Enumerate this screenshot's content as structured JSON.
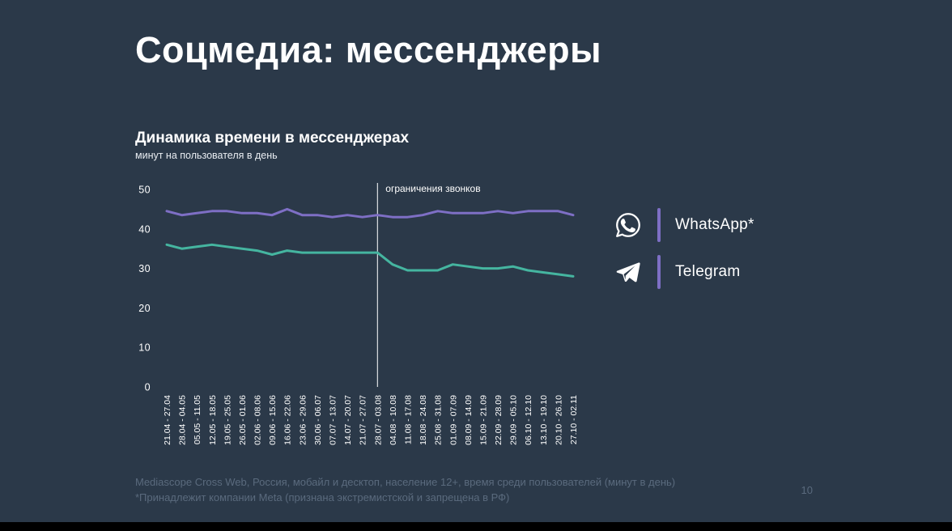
{
  "title": "Соцмедиа: мессенджеры",
  "chart_data": {
    "type": "line",
    "title": "Динамика времени в мессенджерах",
    "subtitle": "минут на пользователя в день",
    "xlabel": "",
    "ylabel": "",
    "ylim": [
      0,
      50
    ],
    "yticks": [
      0,
      10,
      20,
      30,
      40,
      50
    ],
    "grid": false,
    "legend_position": "right",
    "annotation": {
      "label": "ограничения звонков",
      "x_index": 14
    },
    "categories": [
      "21.04 - 27.04",
      "28.04 - 04.05",
      "05.05 - 11.05",
      "12.05 - 18.05",
      "19.05 - 25.05",
      "26.05 - 01.06",
      "02.06 - 08.06",
      "09.06 - 15.06",
      "16.06 - 22.06",
      "23.06 - 29.06",
      "30.06 - 06.07",
      "07.07 - 13.07",
      "14.07 - 20.07",
      "21.07 - 27.07",
      "28.07 - 03.08",
      "04.08 - 10.08",
      "11.08 - 17.08",
      "18.08 - 24.08",
      "25.08 - 31.08",
      "01.09 - 07.09",
      "08.09 - 14.09",
      "15.09 - 21.09",
      "22.09 - 28.09",
      "29.09 - 05.10",
      "06.10 - 12.10",
      "13.10 - 19.10",
      "20.10 - 26.10",
      "27.10 - 02.11"
    ],
    "series": [
      {
        "name": "WhatsApp*",
        "color": "#7e6fc5",
        "values": [
          44.5,
          43.5,
          44,
          44.5,
          44.5,
          44,
          44,
          43.5,
          45,
          43.5,
          43.5,
          43,
          43.5,
          43,
          43.5,
          43,
          43,
          43.5,
          44.5,
          44,
          44,
          44,
          44.5,
          44,
          44.5,
          44.5,
          44.5,
          43.5
        ]
      },
      {
        "name": "Telegram",
        "color": "#45b5a0",
        "values": [
          36,
          35,
          35.5,
          36,
          35.5,
          35,
          34.5,
          33.5,
          34.5,
          34,
          34,
          34,
          34,
          34,
          34,
          31,
          29.5,
          29.5,
          29.5,
          31,
          30.5,
          30,
          30,
          30.5,
          29.5,
          29,
          28.5,
          28
        ]
      }
    ]
  },
  "legend": {
    "items": [
      {
        "icon": "whatsapp-icon",
        "label": "WhatsApp*"
      },
      {
        "icon": "telegram-icon",
        "label": "Telegram"
      }
    ]
  },
  "footer": {
    "line1": "Mediascope Cross Web, Россия, мобайл и десктоп, население 12+, время среди пользователей (минут в день)",
    "line2": "*Принадлежит компании Meta (признана экстремистской и запрещена в РФ)",
    "page_number": "10"
  },
  "colors": {
    "background": "#2b3949",
    "accent_purple": "#7e6fc5",
    "accent_teal": "#45b5a0",
    "muted_text": "#5a6a7d"
  }
}
